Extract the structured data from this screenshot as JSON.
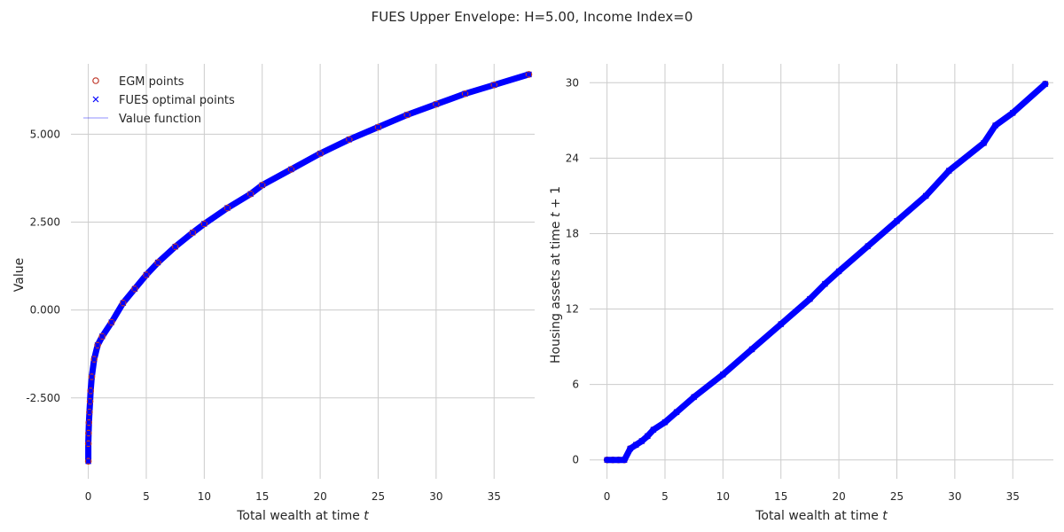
{
  "figure": {
    "title": "FUES Upper Envelope: H=5.00, Income Index=0"
  },
  "chart_data": [
    {
      "type": "scatter",
      "title": "",
      "xlabel": "Total wealth at time t",
      "ylabel": "Value",
      "xlim": [
        -1.5,
        38.5
      ],
      "ylim": [
        -4.8,
        7.0
      ],
      "xticks": [
        0,
        5,
        10,
        15,
        20,
        25,
        30,
        35
      ],
      "yticks": [
        -2.5,
        0.0,
        2.5,
        5.0
      ],
      "xtick_labels": [
        "0",
        "5",
        "10",
        "15",
        "20",
        "25",
        "30",
        "35"
      ],
      "ytick_labels": [
        "-2.500",
        "0.000",
        "2.500",
        "5.000"
      ],
      "grid": true,
      "legend_position": "top-left",
      "legend": [
        "EGM points",
        "FUES optimal points",
        "Value function"
      ],
      "series": [
        {
          "name": "EGM points",
          "marker": "circle-open",
          "color": "#c0392b",
          "x": [
            0.0,
            0.0,
            0.02,
            0.05,
            0.1,
            0.15,
            0.2,
            0.3,
            0.5,
            0.8,
            1.2,
            2.0,
            3.0,
            4.0,
            5.0,
            6.0,
            7.5,
            9.0,
            10.0,
            12.0,
            14.0,
            15.0,
            17.5,
            20.0,
            22.5,
            25.0,
            27.5,
            30.0,
            32.5,
            35.0,
            38.0
          ],
          "y": [
            -4.3,
            -3.8,
            -3.5,
            -3.2,
            -2.9,
            -2.6,
            -2.3,
            -1.9,
            -1.4,
            -1.0,
            -0.75,
            -0.35,
            0.2,
            0.6,
            1.0,
            1.35,
            1.8,
            2.2,
            2.45,
            2.9,
            3.3,
            3.55,
            4.0,
            4.45,
            4.85,
            5.2,
            5.55,
            5.85,
            6.15,
            6.4,
            6.7
          ]
        },
        {
          "name": "FUES optimal points",
          "marker": "x",
          "color": "#0000ff",
          "x": [
            0.0,
            0.0,
            0.02,
            0.05,
            0.1,
            0.15,
            0.2,
            0.3,
            0.5,
            0.8,
            1.2,
            2.0,
            3.0,
            4.0,
            5.0,
            6.0,
            7.5,
            9.0,
            10.0,
            12.0,
            14.0,
            15.0,
            17.5,
            20.0,
            22.5,
            25.0,
            27.5,
            30.0,
            32.5,
            35.0,
            38.0
          ],
          "y": [
            -4.3,
            -3.8,
            -3.5,
            -3.2,
            -2.9,
            -2.6,
            -2.3,
            -1.9,
            -1.4,
            -1.0,
            -0.75,
            -0.35,
            0.2,
            0.6,
            1.0,
            1.35,
            1.8,
            2.2,
            2.45,
            2.9,
            3.3,
            3.55,
            4.0,
            4.45,
            4.85,
            5.2,
            5.55,
            5.85,
            6.15,
            6.4,
            6.7
          ]
        },
        {
          "name": "Value function",
          "marker": "line",
          "color": "#0000ff",
          "x": [
            0.0,
            0.0,
            0.02,
            0.05,
            0.1,
            0.15,
            0.2,
            0.3,
            0.5,
            0.8,
            1.2,
            2.0,
            3.0,
            4.0,
            5.0,
            6.0,
            7.5,
            9.0,
            10.0,
            12.0,
            14.0,
            15.0,
            17.5,
            20.0,
            22.5,
            25.0,
            27.5,
            30.0,
            32.5,
            35.0,
            38.0
          ],
          "y": [
            -4.3,
            -3.8,
            -3.5,
            -3.2,
            -2.9,
            -2.6,
            -2.3,
            -1.9,
            -1.4,
            -1.0,
            -0.75,
            -0.35,
            0.2,
            0.6,
            1.0,
            1.35,
            1.8,
            2.2,
            2.45,
            2.9,
            3.3,
            3.55,
            4.0,
            4.45,
            4.85,
            5.2,
            5.55,
            5.85,
            6.15,
            6.4,
            6.7
          ]
        }
      ]
    },
    {
      "type": "scatter",
      "title": "",
      "xlabel": "Total wealth at time t",
      "ylabel": "Housing assets at time t + 1",
      "xlim": [
        -1.5,
        38.5
      ],
      "ylim": [
        -1.5,
        31.5
      ],
      "xticks": [
        0,
        5,
        10,
        15,
        20,
        25,
        30,
        35
      ],
      "yticks": [
        0,
        6,
        12,
        18,
        24,
        30
      ],
      "xtick_labels": [
        "0",
        "5",
        "10",
        "15",
        "20",
        "25",
        "30",
        "35"
      ],
      "ytick_labels": [
        "0",
        "6",
        "12",
        "18",
        "24",
        "30"
      ],
      "grid": true,
      "series": [
        {
          "name": "EGM points",
          "marker": "circle-open",
          "color": "#c0392b",
          "x": [
            0.0,
            0.5,
            1.0,
            1.5,
            2.0,
            2.5,
            3.0,
            3.5,
            4.0,
            5.0,
            6.0,
            7.5,
            10.0,
            12.5,
            15.0,
            17.5,
            18.8,
            20.0,
            22.5,
            25.0,
            27.5,
            29.5,
            32.5,
            33.5,
            35.0,
            37.8
          ],
          "y": [
            0.0,
            0.0,
            0.0,
            0.0,
            0.9,
            1.2,
            1.5,
            1.9,
            2.4,
            3.0,
            3.8,
            5.0,
            6.8,
            8.8,
            10.8,
            12.8,
            14.0,
            15.0,
            17.0,
            19.0,
            21.0,
            23.0,
            25.2,
            26.6,
            27.6,
            29.9
          ]
        },
        {
          "name": "FUES optimal points",
          "marker": "x",
          "color": "#0000ff",
          "x": [
            0.0,
            0.5,
            1.0,
            1.5,
            2.0,
            2.5,
            3.0,
            3.5,
            4.0,
            5.0,
            6.0,
            7.5,
            10.0,
            12.5,
            15.0,
            17.5,
            18.8,
            20.0,
            22.5,
            25.0,
            27.5,
            29.5,
            32.5,
            33.5,
            35.0,
            37.8
          ],
          "y": [
            0.0,
            0.0,
            0.0,
            0.0,
            0.9,
            1.2,
            1.5,
            1.9,
            2.4,
            3.0,
            3.8,
            5.0,
            6.8,
            8.8,
            10.8,
            12.8,
            14.0,
            15.0,
            17.0,
            19.0,
            21.0,
            23.0,
            25.2,
            26.6,
            27.6,
            29.9
          ]
        }
      ]
    }
  ]
}
